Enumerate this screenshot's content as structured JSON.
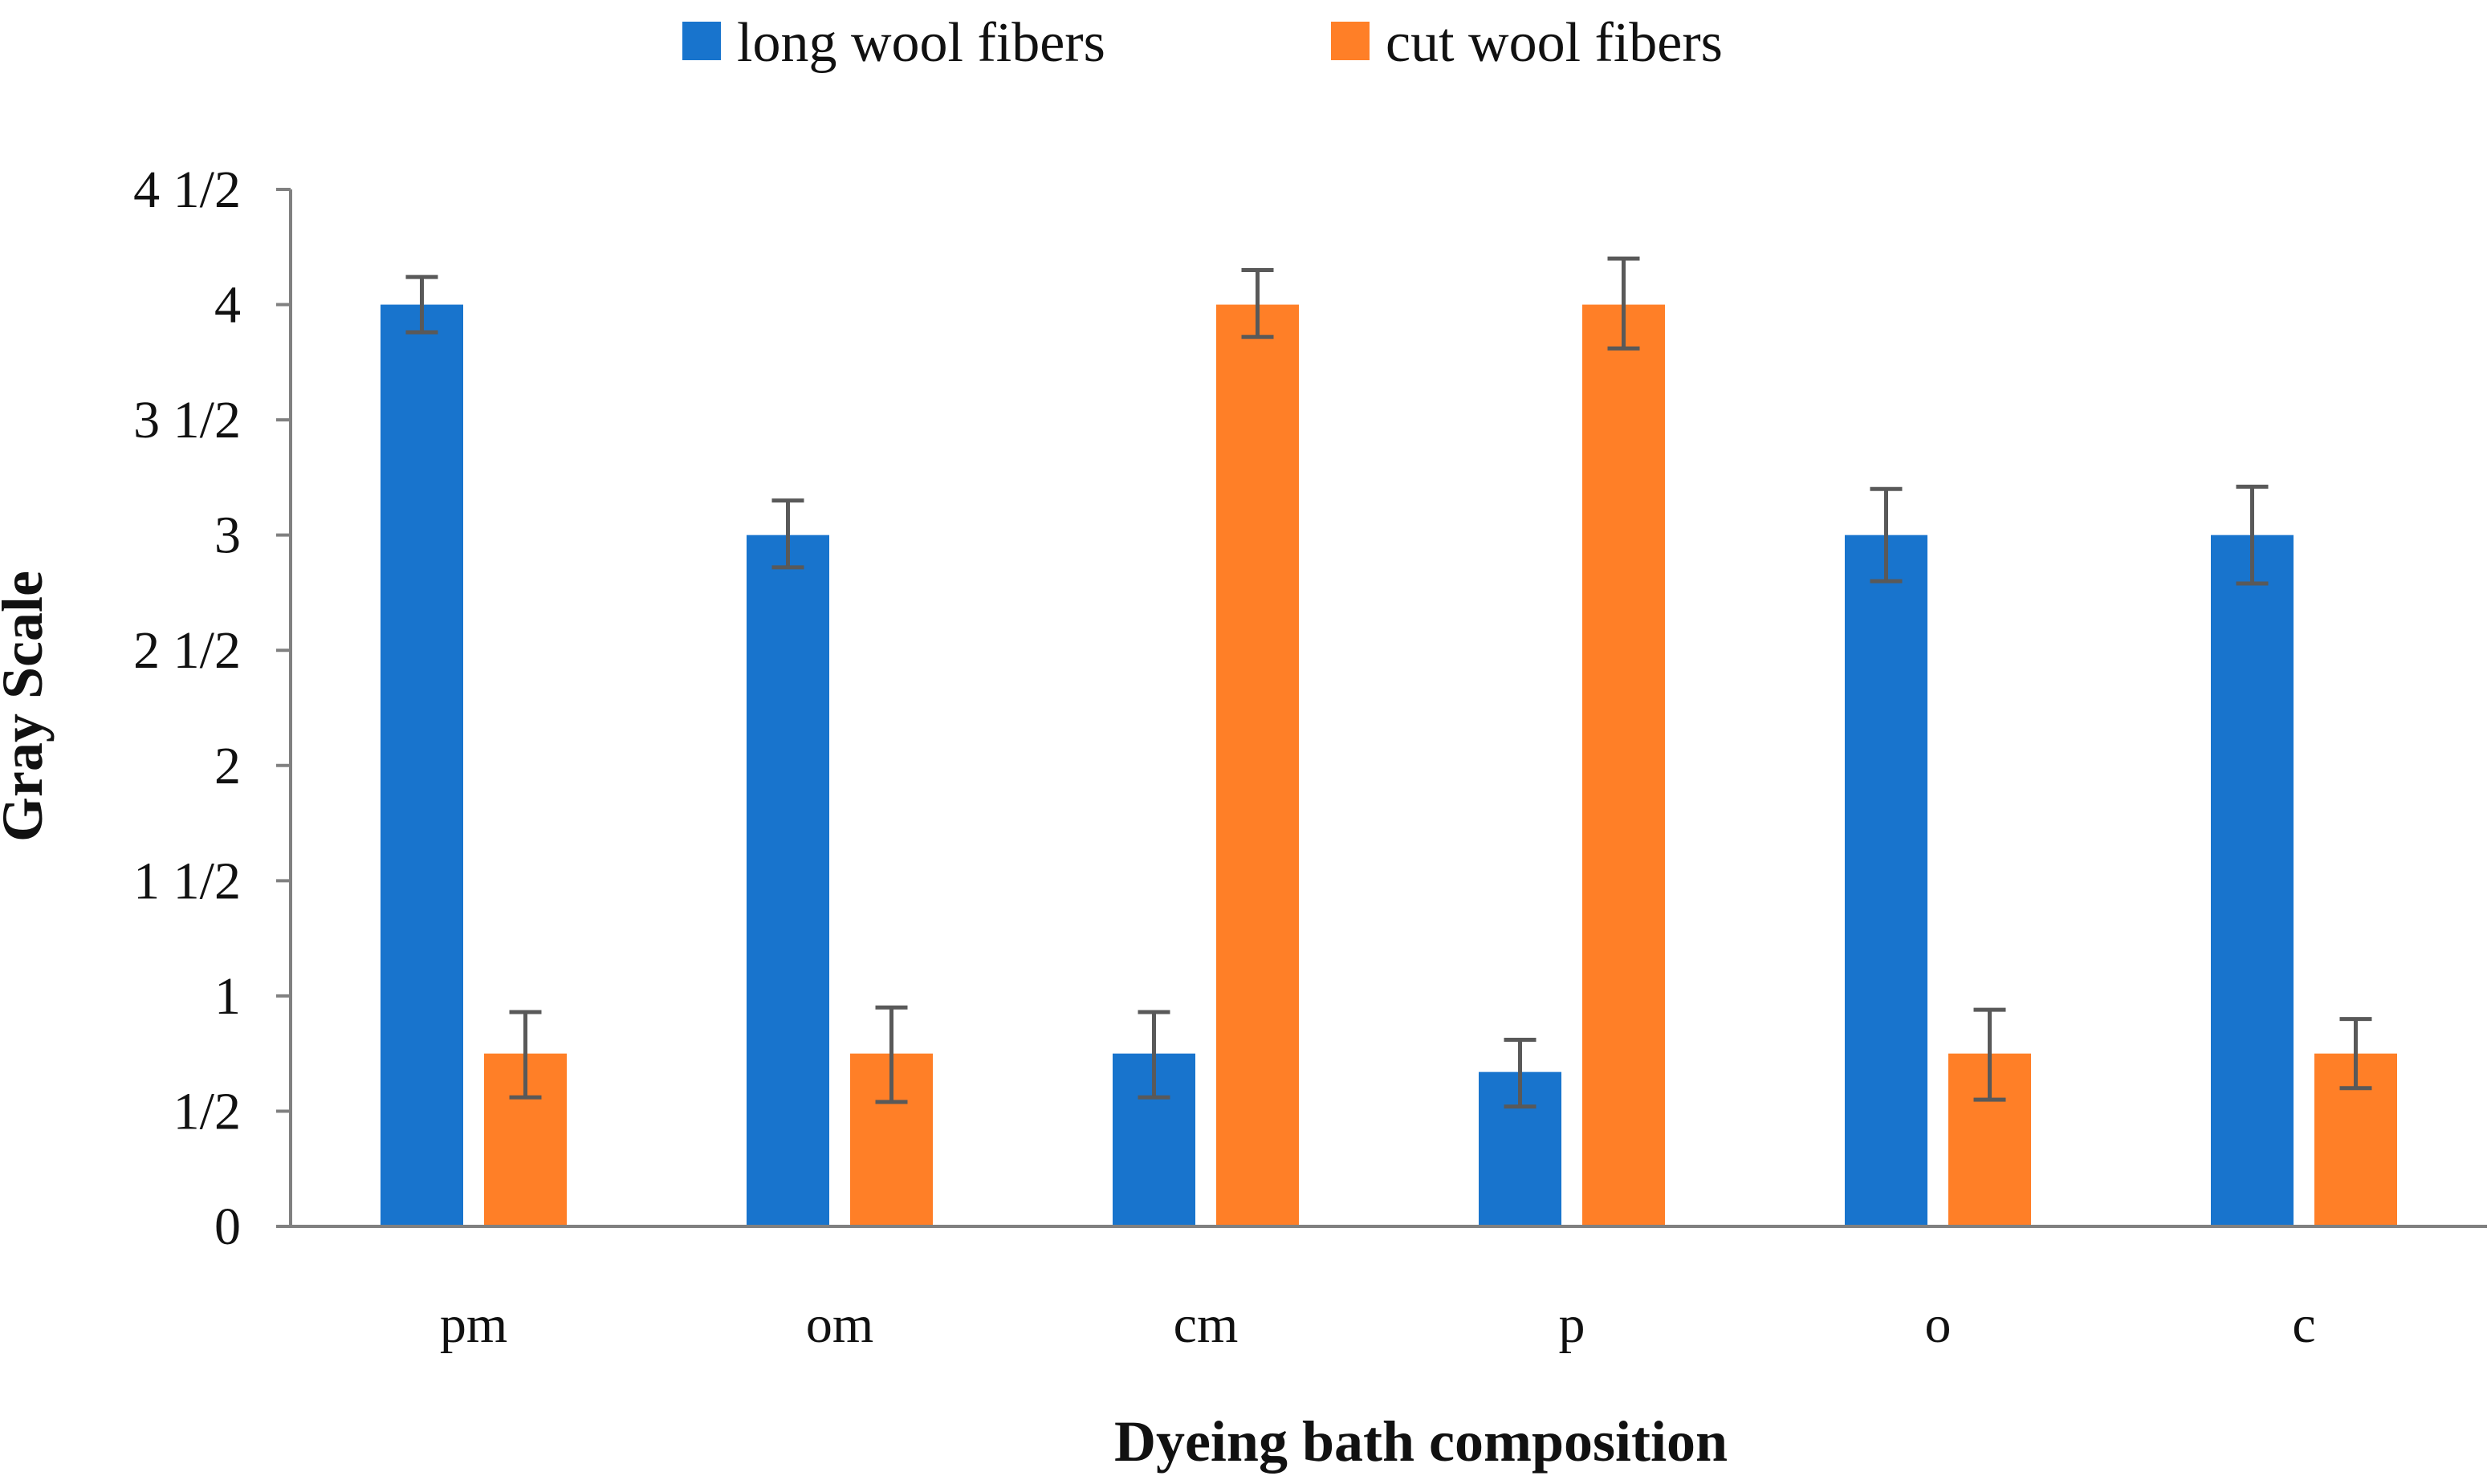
{
  "chart_data": {
    "type": "bar",
    "title": "",
    "xlabel": "Dyeing bath composition",
    "ylabel": "Gray Scale",
    "categories": [
      "pm",
      "om",
      "cm",
      "p",
      "o",
      "c"
    ],
    "series": [
      {
        "name": "long wool fibers",
        "color": "#1874CD",
        "values": [
          4,
          3,
          0.75,
          0.67,
          3,
          3
        ],
        "error_low": [
          3.88,
          2.86,
          0.56,
          0.52,
          2.8,
          2.79
        ],
        "error_high": [
          4.12,
          3.15,
          0.93,
          0.81,
          3.2,
          3.21
        ]
      },
      {
        "name": "cut wool fibers",
        "color": "#FF7F27",
        "values": [
          0.75,
          0.75,
          4,
          4,
          0.75,
          0.75
        ],
        "error_low": [
          0.56,
          0.54,
          3.86,
          3.81,
          0.55,
          0.6
        ],
        "error_high": [
          0.93,
          0.95,
          4.15,
          4.2,
          0.94,
          0.9
        ]
      }
    ],
    "ylim": [
      0,
      4.5
    ],
    "yticks": [
      {
        "value": 0,
        "label": "0"
      },
      {
        "value": 0.5,
        "label": "1/2"
      },
      {
        "value": 1,
        "label": "1"
      },
      {
        "value": 1.5,
        "label": "1 1/2"
      },
      {
        "value": 2,
        "label": "2"
      },
      {
        "value": 2.5,
        "label": "2 1/2"
      },
      {
        "value": 3,
        "label": "3"
      },
      {
        "value": 3.5,
        "label": "3 1/2"
      },
      {
        "value": 4,
        "label": "4"
      },
      {
        "value": 4.5,
        "label": "4 1/2"
      }
    ],
    "grid": false,
    "legend_position": "top-center",
    "axis_color": "#808080",
    "error_bar_color": "#595959"
  }
}
